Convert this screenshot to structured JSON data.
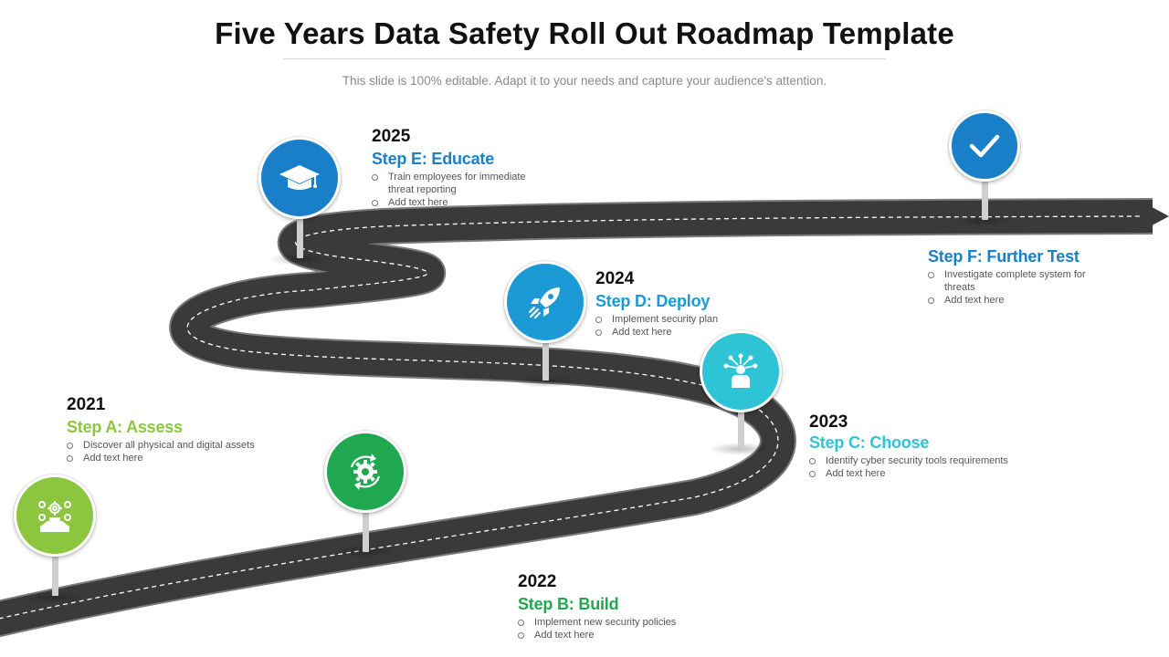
{
  "header": {
    "title": "Five Years Data Safety Roll Out Roadmap Template",
    "subtitle": "This slide is 100% editable. Adapt it to your needs and capture your audience's attention."
  },
  "colors": {
    "road": "#3a3a3a",
    "stepA": "#8cc63f",
    "stepB": "#1fa84f",
    "stepC": "#2ec4d6",
    "stepD": "#1b9ad6",
    "stepE": "#1a7fc9",
    "stepF": "#1a7fc9"
  },
  "steps": {
    "a": {
      "year": "2021",
      "name": "Step A: Assess",
      "bullets": [
        "Discover all physical and digital assets",
        "Add text here"
      ],
      "icon": "assessment-icon"
    },
    "b": {
      "year": "2022",
      "name": "Step B: Build",
      "bullets": [
        "Implement new security policies",
        "Add text here"
      ],
      "icon": "gear-icon"
    },
    "c": {
      "year": "2023",
      "name": "Step C: Choose",
      "bullets": [
        "Identify cyber security tools requirements",
        "Add text here"
      ],
      "icon": "person-network-icon"
    },
    "d": {
      "year": "2024",
      "name": "Step D: Deploy",
      "bullets": [
        "Implement security plan",
        "Add text here"
      ],
      "icon": "rocket-icon"
    },
    "e": {
      "year": "2025",
      "name": "Step E: Educate",
      "bullets": [
        "Train employees for immediate threat reporting",
        "Add text here"
      ],
      "icon": "graduation-cap-icon"
    },
    "f": {
      "name": "Step F: Further Test",
      "bullets": [
        "Investigate complete system for threats",
        "Add text here"
      ],
      "icon": "checkmark-icon"
    }
  }
}
